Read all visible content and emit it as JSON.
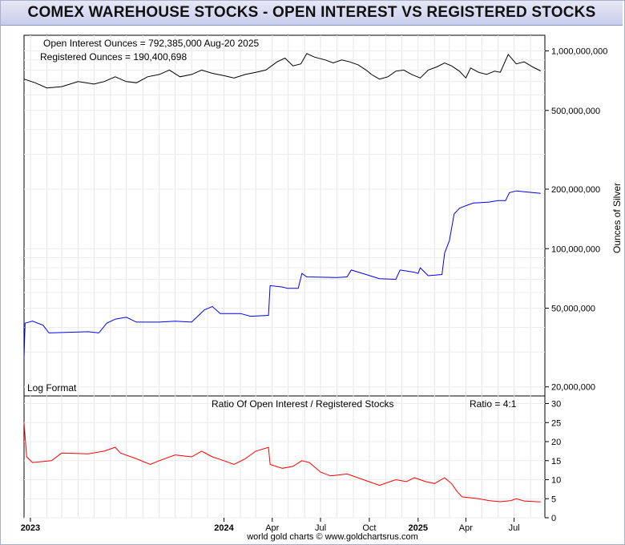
{
  "title": "COMEX WAREHOUSE STOCKS - OPEN INTEREST VS REGISTERED STOCKS",
  "footer": "world gold charts © www.goldchartsrus.com",
  "chart_data": [
    {
      "type": "line",
      "scale": "log",
      "grid": true,
      "ylabel": "Ounces of Silver",
      "ylim": [
        18000000,
        1200000000
      ],
      "yticks": [
        {
          "value": 1000000000,
          "label": "1,000,000,000"
        },
        {
          "value": 500000000,
          "label": "500,000,000"
        },
        {
          "value": 200000000,
          "label": "200,000,000"
        },
        {
          "value": 100000000,
          "label": "100,000,000"
        },
        {
          "value": 50000000,
          "label": "50,000,000"
        },
        {
          "value": 20000000,
          "label": "20,000,000"
        }
      ],
      "annotations": {
        "open_interest": "Open Interest Ounces = 792,385,000  Aug-20  2025",
        "registered": "Registered Ounces = 190,400,698",
        "log_format": "Log Format"
      },
      "series": [
        {
          "key": "open_interest",
          "color": "#000000",
          "points": [
            [
              "2022-12-20",
              720000000
            ],
            [
              "2023-01-10",
              690000000
            ],
            [
              "2023-02-01",
              650000000
            ],
            [
              "2023-03-01",
              660000000
            ],
            [
              "2023-04-01",
              700000000
            ],
            [
              "2023-05-01",
              680000000
            ],
            [
              "2023-05-20",
              700000000
            ],
            [
              "2023-06-10",
              740000000
            ],
            [
              "2023-07-01",
              700000000
            ],
            [
              "2023-07-20",
              690000000
            ],
            [
              "2023-08-10",
              740000000
            ],
            [
              "2023-09-01",
              760000000
            ],
            [
              "2023-09-20",
              800000000
            ],
            [
              "2023-10-10",
              740000000
            ],
            [
              "2023-11-01",
              760000000
            ],
            [
              "2023-11-20",
              800000000
            ],
            [
              "2023-12-10",
              770000000
            ],
            [
              "2024-01-01",
              750000000
            ],
            [
              "2024-01-20",
              730000000
            ],
            [
              "2024-02-10",
              760000000
            ],
            [
              "2024-03-01",
              780000000
            ],
            [
              "2024-03-20",
              800000000
            ],
            [
              "2024-04-10",
              880000000
            ],
            [
              "2024-04-25",
              920000000
            ],
            [
              "2024-05-10",
              840000000
            ],
            [
              "2024-05-25",
              860000000
            ],
            [
              "2024-06-05",
              970000000
            ],
            [
              "2024-06-20",
              930000000
            ],
            [
              "2024-07-10",
              900000000
            ],
            [
              "2024-07-25",
              870000000
            ],
            [
              "2024-08-10",
              900000000
            ],
            [
              "2024-08-25",
              880000000
            ],
            [
              "2024-09-10",
              850000000
            ],
            [
              "2024-09-25",
              800000000
            ],
            [
              "2024-10-05",
              760000000
            ],
            [
              "2024-10-20",
              720000000
            ],
            [
              "2024-11-05",
              740000000
            ],
            [
              "2024-11-20",
              790000000
            ],
            [
              "2024-12-05",
              800000000
            ],
            [
              "2024-12-20",
              760000000
            ],
            [
              "2025-01-05",
              730000000
            ],
            [
              "2025-01-20",
              800000000
            ],
            [
              "2025-02-05",
              830000000
            ],
            [
              "2025-02-20",
              870000000
            ],
            [
              "2025-03-05",
              840000000
            ],
            [
              "2025-03-20",
              790000000
            ],
            [
              "2025-04-01",
              730000000
            ],
            [
              "2025-04-10",
              820000000
            ],
            [
              "2025-04-25",
              780000000
            ],
            [
              "2025-05-10",
              760000000
            ],
            [
              "2025-05-25",
              790000000
            ],
            [
              "2025-06-05",
              780000000
            ],
            [
              "2025-06-20",
              960000000
            ],
            [
              "2025-07-05",
              860000000
            ],
            [
              "2025-07-20",
              880000000
            ],
            [
              "2025-08-05",
              830000000
            ],
            [
              "2025-08-20",
              792385000
            ]
          ]
        },
        {
          "key": "registered",
          "color": "#0000ee",
          "points": [
            [
              "2022-12-20",
              28000000
            ],
            [
              "2022-12-22",
              42000000
            ],
            [
              "2023-01-05",
              43000000
            ],
            [
              "2023-01-25",
              41000000
            ],
            [
              "2023-02-05",
              37500000
            ],
            [
              "2023-04-20",
              38000000
            ],
            [
              "2023-05-10",
              37500000
            ],
            [
              "2023-05-25",
              42000000
            ],
            [
              "2023-06-10",
              44000000
            ],
            [
              "2023-07-01",
              45000000
            ],
            [
              "2023-07-20",
              42500000
            ],
            [
              "2023-09-01",
              42500000
            ],
            [
              "2023-10-01",
              43000000
            ],
            [
              "2023-11-01",
              42500000
            ],
            [
              "2023-11-25",
              49000000
            ],
            [
              "2023-12-10",
              51000000
            ],
            [
              "2023-12-25",
              47000000
            ],
            [
              "2024-02-01",
              47000000
            ],
            [
              "2024-02-20",
              45500000
            ],
            [
              "2024-03-25",
              46000000
            ],
            [
              "2024-03-28",
              65000000
            ],
            [
              "2024-04-20",
              64000000
            ],
            [
              "2024-04-30",
              63000000
            ],
            [
              "2024-05-20",
              63000000
            ],
            [
              "2024-05-27",
              75000000
            ],
            [
              "2024-06-05",
              72000000
            ],
            [
              "2024-08-01",
              71500000
            ],
            [
              "2024-08-20",
              72000000
            ],
            [
              "2024-08-28",
              78000000
            ],
            [
              "2024-09-25",
              74000000
            ],
            [
              "2024-10-20",
              70500000
            ],
            [
              "2024-11-20",
              70000000
            ],
            [
              "2024-11-28",
              78000000
            ],
            [
              "2024-12-25",
              76000000
            ],
            [
              "2025-01-01",
              75000000
            ],
            [
              "2025-01-05",
              80000000
            ],
            [
              "2025-01-20",
              73000000
            ],
            [
              "2025-02-15",
              74000000
            ],
            [
              "2025-02-20",
              95000000
            ],
            [
              "2025-03-01",
              110000000
            ],
            [
              "2025-03-10",
              150000000
            ],
            [
              "2025-03-20",
              160000000
            ],
            [
              "2025-04-01",
              165000000
            ],
            [
              "2025-04-15",
              170000000
            ],
            [
              "2025-05-15",
              172000000
            ],
            [
              "2025-06-01",
              175000000
            ],
            [
              "2025-06-15",
              175000000
            ],
            [
              "2025-06-22",
              192000000
            ],
            [
              "2025-07-05",
              196000000
            ],
            [
              "2025-07-20",
              194000000
            ],
            [
              "2025-08-20",
              190400698
            ]
          ]
        }
      ]
    },
    {
      "type": "line",
      "title": "Ratio Of Open Interest / Registered Stocks",
      "annotation": "Ratio = 4:1",
      "grid": true,
      "ylim": [
        0,
        32
      ],
      "yticks": [
        0,
        5,
        10,
        15,
        20,
        25,
        30
      ],
      "x_tick_labels": [
        "2023",
        "2024",
        "Apr",
        "Jul",
        "Oct",
        "2025",
        "Apr",
        "Jul"
      ],
      "series": [
        {
          "key": "ratio",
          "color": "#ff0000",
          "points": [
            [
              "2022-12-20",
              25
            ],
            [
              "2022-12-25",
              16
            ],
            [
              "2023-01-05",
              14.5
            ],
            [
              "2023-02-10",
              15
            ],
            [
              "2023-03-01",
              17
            ],
            [
              "2023-04-20",
              16.8
            ],
            [
              "2023-05-20",
              17.5
            ],
            [
              "2023-06-10",
              18.5
            ],
            [
              "2023-06-20",
              17
            ],
            [
              "2023-07-20",
              15.5
            ],
            [
              "2023-08-15",
              14
            ],
            [
              "2023-09-01",
              15
            ],
            [
              "2023-10-01",
              16.5
            ],
            [
              "2023-11-01",
              16
            ],
            [
              "2023-11-20",
              17.5
            ],
            [
              "2023-12-10",
              16
            ],
            [
              "2024-01-01",
              15
            ],
            [
              "2024-01-20",
              14
            ],
            [
              "2024-02-10",
              15.5
            ],
            [
              "2024-03-01",
              17.5
            ],
            [
              "2024-03-25",
              18.5
            ],
            [
              "2024-03-28",
              14
            ],
            [
              "2024-04-20",
              13
            ],
            [
              "2024-05-10",
              13.5
            ],
            [
              "2024-05-27",
              15
            ],
            [
              "2024-06-10",
              14.5
            ],
            [
              "2024-07-01",
              12
            ],
            [
              "2024-07-20",
              11
            ],
            [
              "2024-08-20",
              11.5
            ],
            [
              "2024-09-10",
              10.5
            ],
            [
              "2024-09-30",
              9.5
            ],
            [
              "2024-10-20",
              8.5
            ],
            [
              "2024-11-20",
              10
            ],
            [
              "2024-12-10",
              9.5
            ],
            [
              "2024-12-25",
              10.5
            ],
            [
              "2025-01-15",
              9.5
            ],
            [
              "2025-02-01",
              9
            ],
            [
              "2025-02-20",
              10.5
            ],
            [
              "2025-03-05",
              9
            ],
            [
              "2025-03-15",
              7
            ],
            [
              "2025-03-25",
              5.5
            ],
            [
              "2025-04-25",
              5
            ],
            [
              "2025-05-15",
              4.5
            ],
            [
              "2025-06-05",
              4.2
            ],
            [
              "2025-06-25",
              4.5
            ],
            [
              "2025-07-05",
              5
            ],
            [
              "2025-07-20",
              4.4
            ],
            [
              "2025-08-20",
              4.16
            ]
          ]
        }
      ]
    }
  ]
}
